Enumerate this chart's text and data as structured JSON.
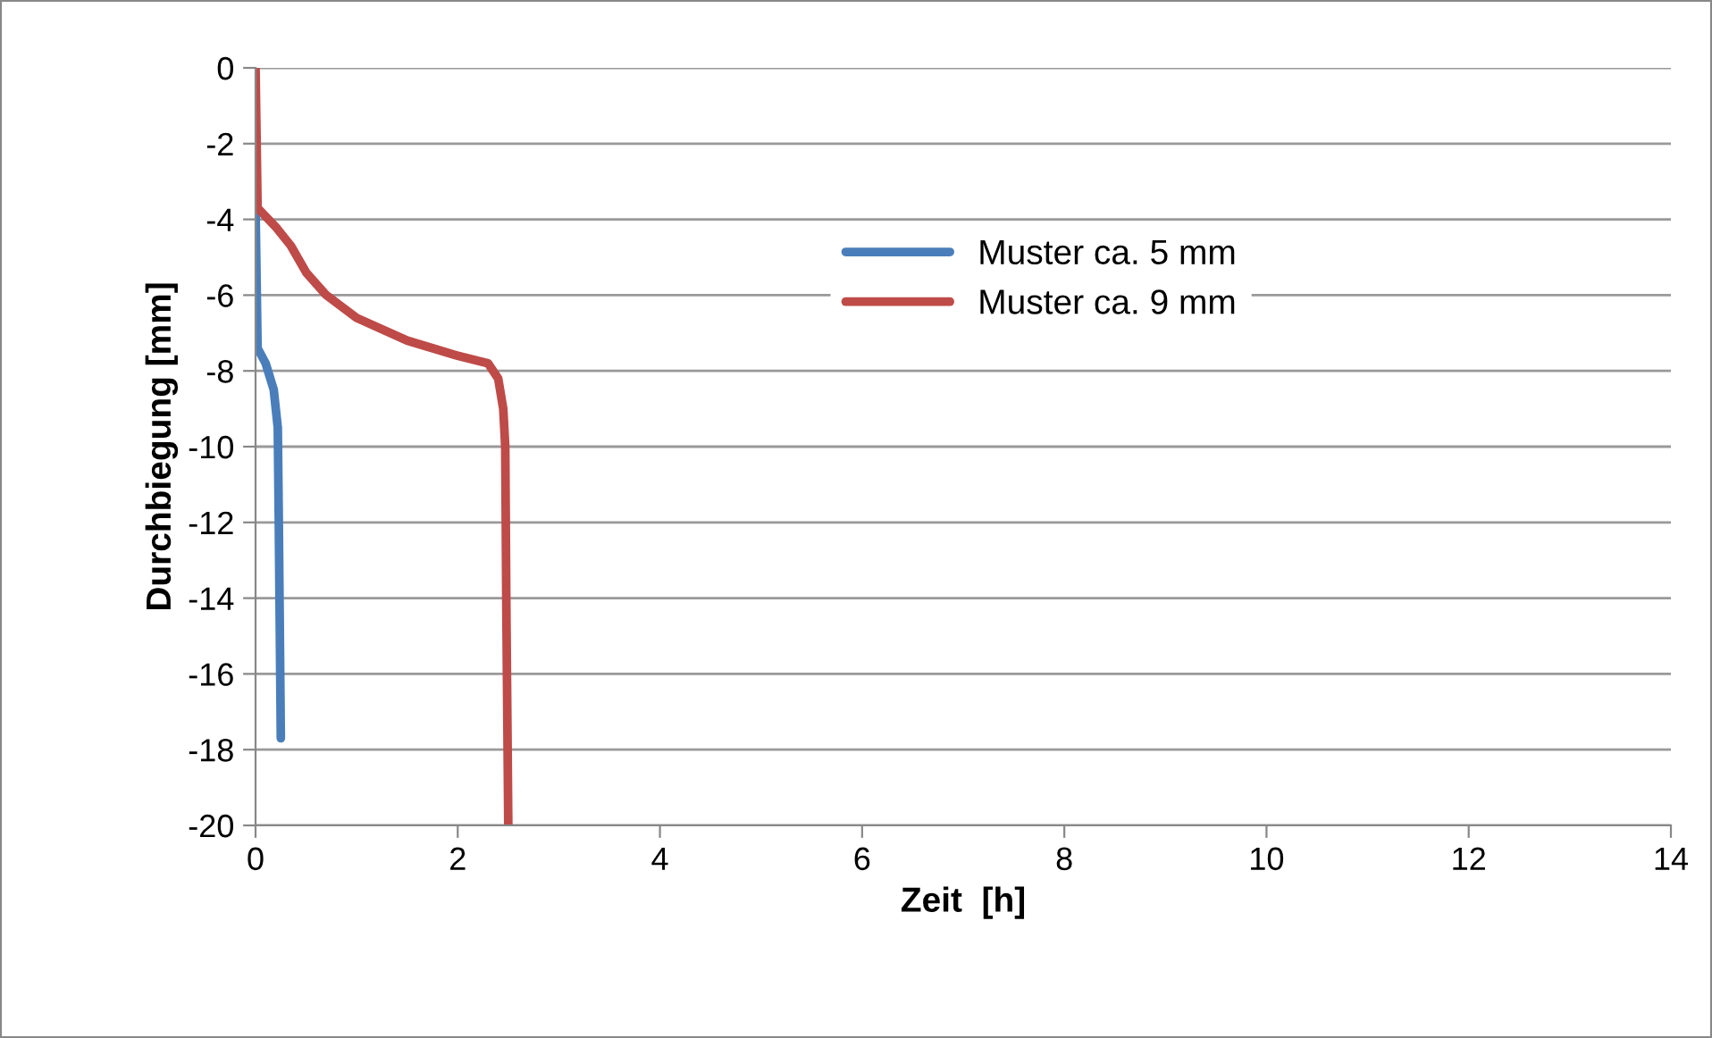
{
  "chart_data": {
    "type": "line",
    "xlabel": "Zeit  [h]",
    "ylabel": "Durchbiegung [mm]",
    "xlim": [
      0,
      14
    ],
    "xticks": [
      0,
      2,
      4,
      6,
      8,
      10,
      12,
      14
    ],
    "ylim": [
      -20,
      0
    ],
    "yticks": [
      0,
      -2,
      -4,
      -6,
      -8,
      -10,
      -12,
      -14,
      -16,
      -18,
      -20
    ],
    "grid": "y",
    "legend": "center",
    "marker": "none",
    "line_style": "solid",
    "series": [
      {
        "name": "Muster ca. 5 mm",
        "color": "#4a7ebb",
        "x": [
          0,
          0.02,
          0.1,
          0.18,
          0.22,
          0.23,
          0.25
        ],
        "values": [
          -3.7,
          -7.4,
          -7.8,
          -8.5,
          -9.5,
          -12,
          -17.7
        ]
      },
      {
        "name": "Muster ca. 9 mm",
        "color": "#be4b48",
        "x": [
          0,
          0.02,
          0.2,
          0.35,
          0.5,
          0.7,
          1.0,
          1.5,
          2.0,
          2.3,
          2.4,
          2.45,
          2.47,
          2.48,
          2.5
        ],
        "values": [
          0,
          -3.7,
          -4.2,
          -4.7,
          -5.4,
          -6.0,
          -6.6,
          -7.2,
          -7.6,
          -7.8,
          -8.2,
          -9,
          -10,
          -14,
          -20
        ]
      }
    ]
  }
}
